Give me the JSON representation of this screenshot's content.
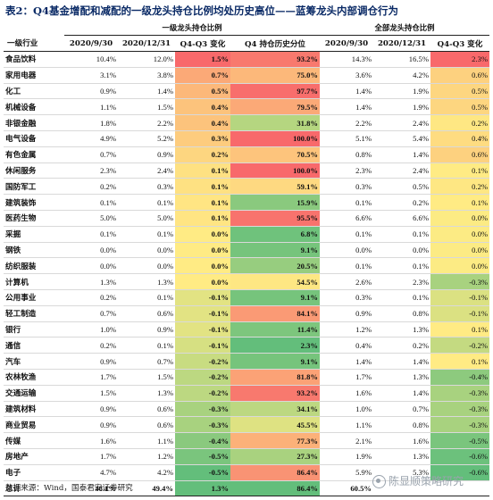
{
  "title": "表2：Q4基金增配和减配的一级龙头持仓比例均处历史高位——蓝筹龙头内部调仓行为",
  "group_headers": {
    "leader": "一级龙头持仓比例",
    "all": "全部龙头持仓比例"
  },
  "columns": [
    "一级行业",
    "2020/9/30",
    "2020/12/31",
    "Q4-Q3 变化",
    "Q4 持仓历史分位",
    "2020/9/30",
    "2020/12/31",
    "Q4-Q3 变化"
  ],
  "colors": {
    "red": "#f8696b",
    "orange": "#fba977",
    "lightorange": "#fdd17f",
    "yellow": "#ffeb84",
    "lime": "#d3e082",
    "lightgreen": "#b1d580",
    "green": "#8ac97e",
    "darkgreen": "#63be7b"
  },
  "rows": [
    {
      "sector": "食品饮料",
      "l_q3": "10.4%",
      "l_q4": "12.0%",
      "l_chg": "1.5%",
      "l_chg_c": "#f8696b",
      "pct": "93.2%",
      "pct_c": "#f8796e",
      "a_q3": "14.3%",
      "a_q4": "16.5%",
      "a_chg": "2.3%",
      "a_chg_c": "#f8696b"
    },
    {
      "sector": "家用电器",
      "l_q3": "3.1%",
      "l_q4": "3.8%",
      "l_chg": "0.7%",
      "l_chg_c": "#fba977",
      "pct": "75.0%",
      "pct_c": "#fcb87a",
      "a_q3": "3.6%",
      "a_q4": "4.2%",
      "a_chg": "0.6%",
      "a_chg_c": "#fdd17f"
    },
    {
      "sector": "化工",
      "l_q3": "0.9%",
      "l_q4": "1.4%",
      "l_chg": "0.5%",
      "l_chg_c": "#fcb87a",
      "pct": "97.7%",
      "pct_c": "#f86e6c",
      "a_q3": "1.4%",
      "a_q4": "1.9%",
      "a_chg": "0.5%",
      "a_chg_c": "#fdd680"
    },
    {
      "sector": "机械设备",
      "l_q3": "1.1%",
      "l_q4": "1.5%",
      "l_chg": "0.4%",
      "l_chg_c": "#fcc37c",
      "pct": "79.5%",
      "pct_c": "#fba977",
      "a_q3": "1.4%",
      "a_q4": "1.9%",
      "a_chg": "0.5%",
      "a_chg_c": "#fdd680"
    },
    {
      "sector": "非银金融",
      "l_q3": "1.8%",
      "l_q4": "2.2%",
      "l_chg": "0.4%",
      "l_chg_c": "#fcc37c",
      "pct": "31.8%",
      "pct_c": "#b5d680",
      "a_q3": "2.2%",
      "a_q4": "2.4%",
      "a_chg": "0.2%",
      "a_chg_c": "#fee783"
    },
    {
      "sector": "电气设备",
      "l_q3": "4.9%",
      "l_q4": "5.2%",
      "l_chg": "0.3%",
      "l_chg_c": "#fdcc7e",
      "pct": "100.0%",
      "pct_c": "#f8696b",
      "a_q3": "5.1%",
      "a_q4": "5.4%",
      "a_chg": "0.4%",
      "a_chg_c": "#fedc81"
    },
    {
      "sector": "有色金属",
      "l_q3": "0.7%",
      "l_q4": "0.9%",
      "l_chg": "0.2%",
      "l_chg_c": "#fdd680",
      "pct": "70.5%",
      "pct_c": "#fdc47c",
      "a_q3": "0.8%",
      "a_q4": "1.4%",
      "a_chg": "0.6%",
      "a_chg_c": "#fdd17f"
    },
    {
      "sector": "休闲服务",
      "l_q3": "2.3%",
      "l_q4": "2.4%",
      "l_chg": "0.1%",
      "l_chg_c": "#fee182",
      "pct": "100.0%",
      "pct_c": "#f8696b",
      "a_q3": "2.3%",
      "a_q4": "2.4%",
      "a_chg": "0.1%",
      "a_chg_c": "#ffeb84"
    },
    {
      "sector": "国防军工",
      "l_q3": "0.2%",
      "l_q4": "0.3%",
      "l_chg": "0.1%",
      "l_chg_c": "#fee182",
      "pct": "59.1%",
      "pct_c": "#fed981",
      "a_q3": "0.3%",
      "a_q4": "0.5%",
      "a_chg": "0.2%",
      "a_chg_c": "#fee783"
    },
    {
      "sector": "建筑装饰",
      "l_q3": "0.1%",
      "l_q4": "0.1%",
      "l_chg": "0.1%",
      "l_chg_c": "#ffe583",
      "pct": "15.9%",
      "pct_c": "#8ac97e",
      "a_q3": "0.1%",
      "a_q4": "0.2%",
      "a_chg": "0.1%",
      "a_chg_c": "#ffeb84"
    },
    {
      "sector": "医药生物",
      "l_q3": "5.0%",
      "l_q4": "5.0%",
      "l_chg": "0.1%",
      "l_chg_c": "#ffe583",
      "pct": "95.5%",
      "pct_c": "#f8736d",
      "a_q3": "6.6%",
      "a_q4": "6.6%",
      "a_chg": "0.0%",
      "a_chg_c": "#fceb84"
    },
    {
      "sector": "采掘",
      "l_q3": "0.1%",
      "l_q4": "0.1%",
      "l_chg": "0.0%",
      "l_chg_c": "#ffeb84",
      "pct": "6.8%",
      "pct_c": "#6fc27c",
      "a_q3": "0.1%",
      "a_q4": "0.1%",
      "a_chg": "0.0%",
      "a_chg_c": "#fceb84"
    },
    {
      "sector": "钢铁",
      "l_q3": "0.0%",
      "l_q4": "0.0%",
      "l_chg": "0.0%",
      "l_chg_c": "#ffeb84",
      "pct": "9.1%",
      "pct_c": "#76c47c",
      "a_q3": "0.0%",
      "a_q4": "0.0%",
      "a_chg": "0.0%",
      "a_chg_c": "#fceb84"
    },
    {
      "sector": "纺织服装",
      "l_q3": "0.0%",
      "l_q4": "0.0%",
      "l_chg": "0.0%",
      "l_chg_c": "#ffeb84",
      "pct": "20.5%",
      "pct_c": "#97cd7f",
      "a_q3": "0.1%",
      "a_q4": "0.1%",
      "a_chg": "0.0%",
      "a_chg_c": "#fceb84"
    },
    {
      "sector": "计算机",
      "l_q3": "1.3%",
      "l_q4": "1.3%",
      "l_chg": "0.0%",
      "l_chg_c": "#ffeb84",
      "pct": "54.5%",
      "pct_c": "#fee783",
      "a_q3": "2.6%",
      "a_q4": "2.3%",
      "a_chg": "-0.3%",
      "a_chg_c": "#a8d27f"
    },
    {
      "sector": "公用事业",
      "l_q3": "0.2%",
      "l_q4": "0.1%",
      "l_chg": "-0.1%",
      "l_chg_c": "#e2e383",
      "pct": "9.1%",
      "pct_c": "#76c47c",
      "a_q3": "0.3%",
      "a_q4": "0.1%",
      "a_chg": "-0.1%",
      "a_chg_c": "#dbe182"
    },
    {
      "sector": "轻工制造",
      "l_q3": "0.7%",
      "l_q4": "0.6%",
      "l_chg": "-0.1%",
      "l_chg_c": "#e2e383",
      "pct": "84.1%",
      "pct_c": "#fa9a75",
      "a_q3": "0.9%",
      "a_q4": "0.8%",
      "a_chg": "-0.1%",
      "a_chg_c": "#dbe182"
    },
    {
      "sector": "银行",
      "l_q3": "1.0%",
      "l_q4": "0.9%",
      "l_chg": "-0.1%",
      "l_chg_c": "#e2e383",
      "pct": "11.4%",
      "pct_c": "#7dc67d",
      "a_q3": "1.2%",
      "a_q4": "1.3%",
      "a_chg": "0.1%",
      "a_chg_c": "#ffeb84"
    },
    {
      "sector": "通信",
      "l_q3": "0.2%",
      "l_q4": "0.1%",
      "l_chg": "-0.1%",
      "l_chg_c": "#d6e082",
      "pct": "2.3%",
      "pct_c": "#63be7b",
      "a_q3": "0.4%",
      "a_q4": "0.2%",
      "a_chg": "-0.2%",
      "a_chg_c": "#c4da81"
    },
    {
      "sector": "汽车",
      "l_q3": "0.9%",
      "l_q4": "0.7%",
      "l_chg": "-0.2%",
      "l_chg_c": "#c8dc81",
      "pct": "9.1%",
      "pct_c": "#76c47c",
      "a_q3": "1.4%",
      "a_q4": "1.4%",
      "a_chg": "0.1%",
      "a_chg_c": "#ffeb84"
    },
    {
      "sector": "农林牧渔",
      "l_q3": "1.7%",
      "l_q4": "1.5%",
      "l_chg": "-0.2%",
      "l_chg_c": "#bcd881",
      "pct": "81.8%",
      "pct_c": "#fba276",
      "a_q3": "1.7%",
      "a_q4": "1.3%",
      "a_chg": "-0.4%",
      "a_chg_c": "#8dca7e"
    },
    {
      "sector": "交通运输",
      "l_q3": "1.5%",
      "l_q4": "1.3%",
      "l_chg": "-0.2%",
      "l_chg_c": "#bcd881",
      "pct": "93.2%",
      "pct_c": "#f8796e",
      "a_q3": "1.6%",
      "a_q4": "1.4%",
      "a_chg": "-0.3%",
      "a_chg_c": "#a8d27f"
    },
    {
      "sector": "建筑材料",
      "l_q3": "0.9%",
      "l_q4": "0.6%",
      "l_chg": "-0.3%",
      "l_chg_c": "#a8d27f",
      "pct": "34.1%",
      "pct_c": "#bcd881",
      "a_q3": "1.0%",
      "a_q4": "0.7%",
      "a_chg": "-0.3%",
      "a_chg_c": "#a8d27f"
    },
    {
      "sector": "商业贸易",
      "l_q3": "0.9%",
      "l_q4": "0.6%",
      "l_chg": "-0.3%",
      "l_chg_c": "#a8d27f",
      "pct": "45.5%",
      "pct_c": "#dee282",
      "a_q3": "1.1%",
      "a_q4": "0.8%",
      "a_chg": "-0.3%",
      "a_chg_c": "#a8d27f"
    },
    {
      "sector": "传媒",
      "l_q3": "1.6%",
      "l_q4": "1.1%",
      "l_chg": "-0.4%",
      "l_chg_c": "#8ac97e",
      "pct": "77.3%",
      "pct_c": "#fcb179",
      "a_q3": "2.1%",
      "a_q4": "1.6%",
      "a_chg": "-0.5%",
      "a_chg_c": "#7ac57d"
    },
    {
      "sector": "房地产",
      "l_q3": "1.7%",
      "l_q4": "1.2%",
      "l_chg": "-0.5%",
      "l_chg_c": "#7ac57d",
      "pct": "27.3%",
      "pct_c": "#a9d27f",
      "a_q3": "1.9%",
      "a_q4": "1.3%",
      "a_chg": "-0.6%",
      "a_chg_c": "#6cc17c"
    },
    {
      "sector": "电子",
      "l_q3": "4.7%",
      "l_q4": "4.2%",
      "l_chg": "-0.5%",
      "l_chg_c": "#63be7b",
      "pct": "86.4%",
      "pct_c": "#f99374",
      "a_q3": "5.9%",
      "a_q4": "5.3%",
      "a_chg": "-0.6%",
      "a_chg_c": "#63be7b"
    }
  ],
  "total": {
    "sector": "总计",
    "l_q3": "48.1%",
    "l_q4": "49.4%",
    "l_chg": "1.3%",
    "l_chg_c": "#63be7b",
    "pct": "86.4%",
    "pct_c": "#63be7b",
    "a_q3": "60.5%",
    "a_q4": "",
    "a_chg": "",
    "a_chg_c": "#ffffff"
  },
  "source": "数据来源：Wind，国泰君安证券研究",
  "watermark": "陈显顺策略研究"
}
